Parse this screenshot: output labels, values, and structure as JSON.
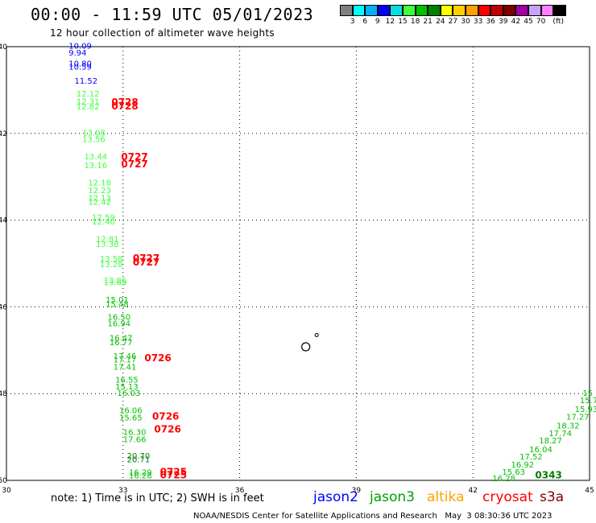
{
  "title": "00:00 - 11:59 UTC 05/01/2023",
  "subtitle": "12 hour collection of altimeter wave heights",
  "colorbar": {
    "unit": "(ft)",
    "colors": [
      "#808080",
      "#00ffff",
      "#00b0ff",
      "#0000ff",
      "#00e0e0",
      "#40ff40",
      "#00c000",
      "#008000",
      "#ffff00",
      "#ffd000",
      "#ffa000",
      "#ff0000",
      "#c00000",
      "#800000",
      "#a000a0",
      "#c8a0ff",
      "#ff80ff",
      "#000000"
    ],
    "labels": [
      "3",
      "6",
      "9",
      "12",
      "15",
      "18",
      "21",
      "24",
      "27",
      "30",
      "33",
      "36",
      "39",
      "42",
      "45",
      "70"
    ]
  },
  "map": {
    "x_ticks": [
      "30",
      "33",
      "36",
      "39",
      "42",
      "45"
    ],
    "y_ticks": [
      "-40",
      "-42",
      "-44",
      "-46",
      "-48",
      "-50"
    ],
    "lon_range": [
      30,
      45
    ],
    "lat_range": [
      -40,
      -50
    ]
  },
  "observations": [
    {
      "text": "10.09",
      "lon": 31.6,
      "lat": -40.05,
      "color": "#0000ff"
    },
    {
      "text": "9.94",
      "lon": 31.6,
      "lat": -40.2,
      "color": "#0000ff"
    },
    {
      "text": "10.80",
      "lon": 31.6,
      "lat": -40.45,
      "color": "#0000ff"
    },
    {
      "text": "10.59",
      "lon": 31.6,
      "lat": -40.53,
      "color": "#0000ff"
    },
    {
      "text": "11.52",
      "lon": 31.75,
      "lat": -40.85,
      "color": "#0000ff"
    },
    {
      "text": "12.12",
      "lon": 31.8,
      "lat": -41.15,
      "color": "#40ff40"
    },
    {
      "text": "12.31",
      "lon": 31.8,
      "lat": -41.33,
      "color": "#40ff40"
    },
    {
      "text": "12.82",
      "lon": 31.8,
      "lat": -41.45,
      "color": "#40ff40"
    },
    {
      "text": "13.08",
      "lon": 31.95,
      "lat": -42.05,
      "color": "#40ff40"
    },
    {
      "text": "13.56",
      "lon": 31.95,
      "lat": -42.2,
      "color": "#40ff40"
    },
    {
      "text": "13.44",
      "lon": 32.0,
      "lat": -42.6,
      "color": "#40ff40"
    },
    {
      "text": "13.16",
      "lon": 32.0,
      "lat": -42.8,
      "color": "#40ff40"
    },
    {
      "text": "12.18",
      "lon": 32.1,
      "lat": -43.2,
      "color": "#40ff40"
    },
    {
      "text": "12.23",
      "lon": 32.1,
      "lat": -43.38,
      "color": "#40ff40"
    },
    {
      "text": "12.13",
      "lon": 32.1,
      "lat": -43.55,
      "color": "#40ff40"
    },
    {
      "text": "12.42",
      "lon": 32.1,
      "lat": -43.65,
      "color": "#40ff40"
    },
    {
      "text": "12.59",
      "lon": 32.2,
      "lat": -44.0,
      "color": "#40ff40"
    },
    {
      "text": "12.40",
      "lon": 32.2,
      "lat": -44.1,
      "color": "#40ff40"
    },
    {
      "text": "12.81",
      "lon": 32.3,
      "lat": -44.5,
      "color": "#40ff40"
    },
    {
      "text": "13.38",
      "lon": 32.3,
      "lat": -44.62,
      "color": "#40ff40"
    },
    {
      "text": "13.58",
      "lon": 32.4,
      "lat": -44.95,
      "color": "#40ff40"
    },
    {
      "text": "13.28",
      "lon": 32.4,
      "lat": -45.08,
      "color": "#40ff40"
    },
    {
      "text": "13.86",
      "lon": 32.5,
      "lat": -45.45,
      "color": "#40ff40"
    },
    {
      "text": "13.65",
      "lon": 32.5,
      "lat": -45.5,
      "color": "#40ff40"
    },
    {
      "text": "15.01",
      "lon": 32.55,
      "lat": -45.9,
      "color": "#00c000"
    },
    {
      "text": "15.48",
      "lon": 32.55,
      "lat": -46.0,
      "color": "#00c000"
    },
    {
      "text": "16.50",
      "lon": 32.6,
      "lat": -46.3,
      "color": "#00c000"
    },
    {
      "text": "16.94",
      "lon": 32.6,
      "lat": -46.45,
      "color": "#00c000"
    },
    {
      "text": "16.47",
      "lon": 32.65,
      "lat": -46.78,
      "color": "#00c000"
    },
    {
      "text": "16.77",
      "lon": 32.65,
      "lat": -46.88,
      "color": "#00c000"
    },
    {
      "text": "17.46",
      "lon": 32.75,
      "lat": -47.2,
      "color": "#00c000"
    },
    {
      "text": "17.17",
      "lon": 32.75,
      "lat": -47.28,
      "color": "#00c000"
    },
    {
      "text": "17.41",
      "lon": 32.75,
      "lat": -47.45,
      "color": "#00c000"
    },
    {
      "text": "16.55",
      "lon": 32.8,
      "lat": -47.75,
      "color": "#00c000"
    },
    {
      "text": "15.13",
      "lon": 32.8,
      "lat": -47.9,
      "color": "#00c000"
    },
    {
      "text": "16.03",
      "lon": 32.85,
      "lat": -48.05,
      "color": "#00c000"
    },
    {
      "text": "16.06",
      "lon": 32.9,
      "lat": -48.45,
      "color": "#00c000"
    },
    {
      "text": "15.65",
      "lon": 32.9,
      "lat": -48.62,
      "color": "#00c000"
    },
    {
      "text": "16.30",
      "lon": 33.0,
      "lat": -48.95,
      "color": "#00c000"
    },
    {
      "text": "17.66",
      "lon": 33.0,
      "lat": -49.12,
      "color": "#00c000"
    },
    {
      "text": "20.70",
      "lon": 33.1,
      "lat": -49.5,
      "color": "#008000"
    },
    {
      "text": "20.71",
      "lon": 33.1,
      "lat": -49.58,
      "color": "#008000"
    },
    {
      "text": "16.29",
      "lon": 33.15,
      "lat": -49.88,
      "color": "#00c000"
    },
    {
      "text": "16.28",
      "lon": 33.15,
      "lat": -49.95,
      "color": "#00c000"
    },
    {
      "text": "15",
      "lon": 44.82,
      "lat": -48.05,
      "color": "#00c000"
    },
    {
      "text": "15.7",
      "lon": 44.75,
      "lat": -48.22,
      "color": "#00c000"
    },
    {
      "text": "15.93",
      "lon": 44.62,
      "lat": -48.42,
      "color": "#00c000"
    },
    {
      "text": "17.27",
      "lon": 44.4,
      "lat": -48.6,
      "color": "#00c000"
    },
    {
      "text": "18.32",
      "lon": 44.15,
      "lat": -48.8,
      "color": "#00c000"
    },
    {
      "text": "17.74",
      "lon": 43.95,
      "lat": -48.98,
      "color": "#00c000"
    },
    {
      "text": "18.27",
      "lon": 43.7,
      "lat": -49.15,
      "color": "#00c000"
    },
    {
      "text": "16.04",
      "lon": 43.45,
      "lat": -49.35,
      "color": "#00c000"
    },
    {
      "text": "17.52",
      "lon": 43.2,
      "lat": -49.52,
      "color": "#00c000"
    },
    {
      "text": "16.92",
      "lon": 42.98,
      "lat": -49.7,
      "color": "#00c000"
    },
    {
      "text": "15.63",
      "lon": 42.75,
      "lat": -49.87,
      "color": "#00c000"
    },
    {
      "text": "16.28",
      "lon": 42.5,
      "lat": -50.02,
      "color": "#00c000"
    }
  ],
  "pass_times": [
    {
      "text": "0728",
      "lon": 32.7,
      "lat": -41.35,
      "color": "#ff0000"
    },
    {
      "text": "0728",
      "lon": 32.7,
      "lat": -41.45,
      "color": "#ff0000"
    },
    {
      "text": "0727",
      "lon": 32.95,
      "lat": -42.62,
      "color": "#ff0000"
    },
    {
      "text": "0727",
      "lon": 32.95,
      "lat": -42.78,
      "color": "#ff0000"
    },
    {
      "text": "0727",
      "lon": 33.25,
      "lat": -44.95,
      "color": "#ff0000"
    },
    {
      "text": "0727",
      "lon": 33.25,
      "lat": -45.05,
      "color": "#ff0000"
    },
    {
      "text": "0726",
      "lon": 33.55,
      "lat": -47.25,
      "color": "#ff0000"
    },
    {
      "text": "0726",
      "lon": 33.75,
      "lat": -48.6,
      "color": "#ff0000"
    },
    {
      "text": "0726",
      "lon": 33.8,
      "lat": -48.9,
      "color": "#ff0000"
    },
    {
      "text": "0725",
      "lon": 33.95,
      "lat": -49.88,
      "color": "#ff0000"
    },
    {
      "text": "0725",
      "lon": 33.95,
      "lat": -49.95,
      "color": "#ff0000"
    },
    {
      "text": "0343",
      "lon": 43.6,
      "lat": -49.95,
      "color": "#008000"
    }
  ],
  "note": "note: 1) Time is in UTC; 2) SWH is in feet",
  "satellites": [
    {
      "name": "jason2",
      "color": "#0000ff"
    },
    {
      "name": "jason3",
      "color": "#00a000"
    },
    {
      "name": "altika",
      "color": "#ffa000"
    },
    {
      "name": "cryosat",
      "color": "#ff0000"
    },
    {
      "name": "s3a",
      "color": "#800000"
    }
  ],
  "footer": "NOAA/NESDIS Center for Satellite Applications and Research   May  3 08:30:36 UTC 2023"
}
